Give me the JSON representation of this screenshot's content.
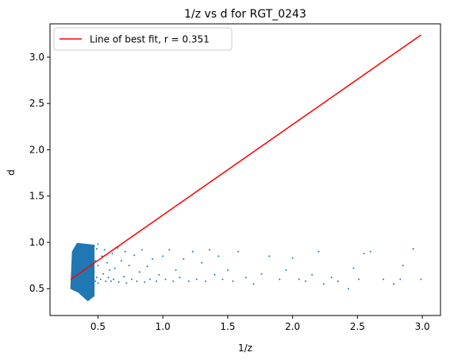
{
  "chart_data": {
    "type": "scatter",
    "title": "1/z vs d for RGT_0243",
    "xlabel": "1/z",
    "ylabel": "d",
    "xlim": [
      0.13,
      3.14
    ],
    "ylim": [
      0.21,
      3.36
    ],
    "xticks": [
      0.5,
      1.0,
      1.5,
      2.0,
      2.5,
      3.0
    ],
    "xtick_labels": [
      "0.5",
      "1.0",
      "1.5",
      "2.0",
      "2.5",
      "3.0"
    ],
    "yticks": [
      0.5,
      1.0,
      1.5,
      2.0,
      2.5,
      3.0
    ],
    "ytick_labels": [
      "0.5",
      "1.0",
      "1.5",
      "2.0",
      "2.5",
      "3.0"
    ],
    "grid": false,
    "legend": {
      "position": "top-left",
      "entries": [
        "Line of best fit, r = 0.351"
      ]
    },
    "fit_line": {
      "name": "Line of best fit, r = 0.351",
      "color": "#ff0000",
      "x": [
        0.29,
        2.99
      ],
      "y": [
        0.6,
        3.24
      ]
    },
    "scatter_series": {
      "color": "#1f77b4",
      "points": [
        [
          0.3,
          0.52
        ],
        [
          0.3,
          0.64
        ],
        [
          0.31,
          0.57
        ],
        [
          0.31,
          0.78
        ],
        [
          0.32,
          0.5
        ],
        [
          0.32,
          0.9
        ],
        [
          0.33,
          0.62
        ],
        [
          0.33,
          0.7
        ],
        [
          0.34,
          0.55
        ],
        [
          0.34,
          0.85
        ],
        [
          0.35,
          0.6
        ],
        [
          0.35,
          0.93
        ],
        [
          0.36,
          0.5
        ],
        [
          0.36,
          0.75
        ],
        [
          0.37,
          0.66
        ],
        [
          0.37,
          0.88
        ],
        [
          0.38,
          0.54
        ],
        [
          0.38,
          0.95
        ],
        [
          0.39,
          0.6
        ],
        [
          0.39,
          0.8
        ],
        [
          0.4,
          0.48
        ],
        [
          0.4,
          0.7
        ],
        [
          0.41,
          0.92
        ],
        [
          0.41,
          0.58
        ],
        [
          0.42,
          0.45
        ],
        [
          0.42,
          0.82
        ],
        [
          0.43,
          0.65
        ],
        [
          0.43,
          0.38
        ],
        [
          0.44,
          0.74
        ],
        [
          0.44,
          0.97
        ],
        [
          0.45,
          0.6
        ],
        [
          0.45,
          0.86
        ],
        [
          0.46,
          0.55
        ],
        [
          0.46,
          0.9
        ],
        [
          0.47,
          0.68
        ],
        [
          0.47,
          0.96
        ],
        [
          0.48,
          0.58
        ],
        [
          0.48,
          0.8
        ],
        [
          0.49,
          0.62
        ],
        [
          0.49,
          0.93
        ],
        [
          0.5,
          0.56
        ],
        [
          0.5,
          0.75
        ],
        [
          0.5,
          0.98
        ],
        [
          0.52,
          0.6
        ],
        [
          0.53,
          0.85
        ],
        [
          0.54,
          0.66
        ],
        [
          0.55,
          0.92
        ],
        [
          0.56,
          0.58
        ],
        [
          0.57,
          0.78
        ],
        [
          0.58,
          0.62
        ],
        [
          0.59,
          0.7
        ],
        [
          0.6,
          0.58
        ],
        [
          0.61,
          0.88
        ],
        [
          0.62,
          0.6
        ],
        [
          0.63,
          0.72
        ],
        [
          0.65,
          0.94
        ],
        [
          0.66,
          0.57
        ],
        [
          0.68,
          0.8
        ],
        [
          0.7,
          0.63
        ],
        [
          0.71,
          0.9
        ],
        [
          0.72,
          0.56
        ],
        [
          0.74,
          0.75
        ],
        [
          0.76,
          0.6
        ],
        [
          0.78,
          0.86
        ],
        [
          0.8,
          0.58
        ],
        [
          0.82,
          0.68
        ],
        [
          0.84,
          0.92
        ],
        [
          0.86,
          0.57
        ],
        [
          0.88,
          0.74
        ],
        [
          0.9,
          0.6
        ],
        [
          0.92,
          0.82
        ],
        [
          0.95,
          0.58
        ],
        [
          0.97,
          0.65
        ],
        [
          1.0,
          0.85
        ],
        [
          1.02,
          0.6
        ],
        [
          1.05,
          0.92
        ],
        [
          1.08,
          0.58
        ],
        [
          1.1,
          0.7
        ],
        [
          1.13,
          0.62
        ],
        [
          1.16,
          0.82
        ],
        [
          1.2,
          0.58
        ],
        [
          1.23,
          0.9
        ],
        [
          1.26,
          0.6
        ],
        [
          1.3,
          0.78
        ],
        [
          1.33,
          0.58
        ],
        [
          1.36,
          0.92
        ],
        [
          1.4,
          0.65
        ],
        [
          1.43,
          0.85
        ],
        [
          1.46,
          0.6
        ],
        [
          1.5,
          0.7
        ],
        [
          1.54,
          0.58
        ],
        [
          1.58,
          0.9
        ],
        [
          1.64,
          0.62
        ],
        [
          1.7,
          0.55
        ],
        [
          1.76,
          0.66
        ],
        [
          1.82,
          0.85
        ],
        [
          1.9,
          0.6
        ],
        [
          1.95,
          0.7
        ],
        [
          2.0,
          0.83
        ],
        [
          2.05,
          0.6
        ],
        [
          2.1,
          0.58
        ],
        [
          2.15,
          0.65
        ],
        [
          2.2,
          0.9
        ],
        [
          2.24,
          0.55
        ],
        [
          2.3,
          0.62
        ],
        [
          2.35,
          0.58
        ],
        [
          2.43,
          0.5
        ],
        [
          2.47,
          0.72
        ],
        [
          2.51,
          0.6
        ],
        [
          2.55,
          0.88
        ],
        [
          2.6,
          0.9
        ],
        [
          2.7,
          0.6
        ],
        [
          2.78,
          0.55
        ],
        [
          2.83,
          0.6
        ],
        [
          2.85,
          0.75
        ],
        [
          2.93,
          0.93
        ],
        [
          2.99,
          0.6
        ]
      ],
      "dense_cluster": {
        "x_range": [
          0.29,
          0.47
        ],
        "y_range": [
          0.37,
          0.99
        ]
      }
    }
  }
}
